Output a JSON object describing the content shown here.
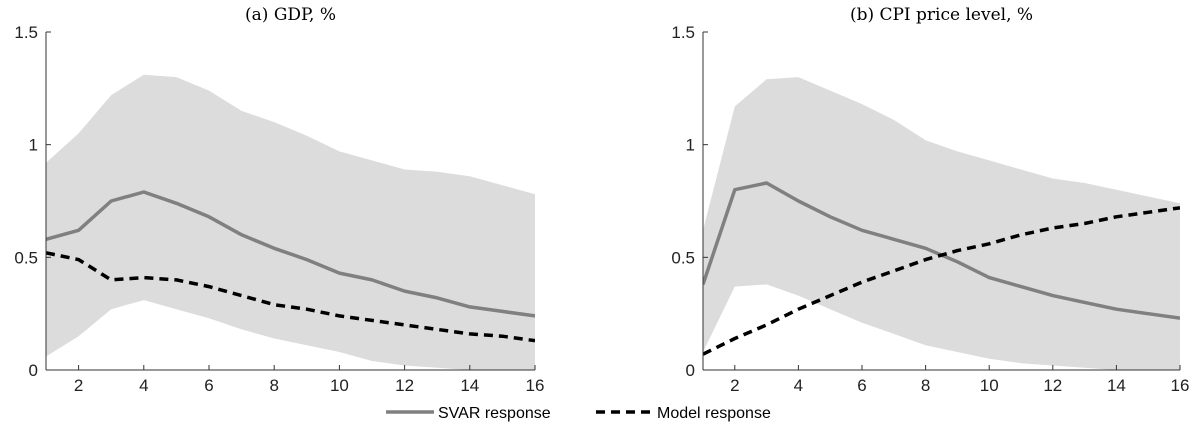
{
  "colors": {
    "band": "#dcdcdc",
    "svar": "#808080",
    "model": "#000000",
    "axis": "#333333"
  },
  "legend": {
    "placement": "bottom-center",
    "svar_label": "SVAR response",
    "model_label": "Model response"
  },
  "chart_data": [
    {
      "type": "line",
      "title": "(a) GDP, %",
      "xlabel": "",
      "ylabel": "",
      "xlim": [
        1,
        16
      ],
      "ylim": [
        0,
        1.5
      ],
      "x_ticks": [
        2,
        4,
        6,
        8,
        10,
        12,
        14,
        16
      ],
      "y_ticks": [
        0,
        0.5,
        1,
        1.5
      ],
      "x_tick_labels": [
        "2",
        "4",
        "6",
        "8",
        "10",
        "12",
        "14",
        "16"
      ],
      "y_tick_labels": [
        "0",
        "0.5",
        "1",
        "1.5"
      ],
      "grid": false,
      "x": [
        1,
        2,
        3,
        4,
        5,
        6,
        7,
        8,
        9,
        10,
        11,
        12,
        13,
        14,
        15,
        16
      ],
      "band": {
        "upper": [
          0.92,
          1.05,
          1.22,
          1.31,
          1.3,
          1.24,
          1.15,
          1.1,
          1.04,
          0.97,
          0.93,
          0.89,
          0.88,
          0.86,
          0.82,
          0.78
        ],
        "lower": [
          0.06,
          0.15,
          0.27,
          0.31,
          0.27,
          0.23,
          0.18,
          0.14,
          0.11,
          0.08,
          0.04,
          0.02,
          0.01,
          0.0,
          -0.01,
          -0.02
        ]
      },
      "series": [
        {
          "name": "SVAR response",
          "values": [
            0.58,
            0.62,
            0.75,
            0.79,
            0.74,
            0.68,
            0.6,
            0.54,
            0.49,
            0.43,
            0.4,
            0.35,
            0.32,
            0.28,
            0.26,
            0.24
          ]
        },
        {
          "name": "Model response",
          "values": [
            0.52,
            0.49,
            0.4,
            0.41,
            0.4,
            0.37,
            0.33,
            0.29,
            0.27,
            0.24,
            0.22,
            0.2,
            0.18,
            0.16,
            0.15,
            0.13
          ]
        }
      ]
    },
    {
      "type": "line",
      "title": "(b) CPI price level, %",
      "xlabel": "",
      "ylabel": "",
      "xlim": [
        1,
        16
      ],
      "ylim": [
        0,
        1.5
      ],
      "x_ticks": [
        2,
        4,
        6,
        8,
        10,
        12,
        14,
        16
      ],
      "y_ticks": [
        0,
        0.5,
        1,
        1.5
      ],
      "x_tick_labels": [
        "2",
        "4",
        "6",
        "8",
        "10",
        "12",
        "14",
        "16"
      ],
      "y_tick_labels": [
        "0",
        "0.5",
        "1",
        "1.5"
      ],
      "grid": false,
      "x": [
        1,
        2,
        3,
        4,
        5,
        6,
        7,
        8,
        9,
        10,
        11,
        12,
        13,
        14,
        15,
        16
      ],
      "band": {
        "upper": [
          0.62,
          1.17,
          1.29,
          1.3,
          1.24,
          1.18,
          1.11,
          1.02,
          0.97,
          0.93,
          0.89,
          0.85,
          0.83,
          0.8,
          0.77,
          0.74
        ],
        "lower": [
          0.08,
          0.37,
          0.38,
          0.33,
          0.27,
          0.21,
          0.16,
          0.11,
          0.08,
          0.05,
          0.03,
          0.02,
          0.01,
          0.0,
          -0.01,
          -0.02
        ]
      },
      "series": [
        {
          "name": "SVAR response",
          "values": [
            0.38,
            0.8,
            0.83,
            0.75,
            0.68,
            0.62,
            0.58,
            0.54,
            0.48,
            0.41,
            0.37,
            0.33,
            0.3,
            0.27,
            0.25,
            0.23
          ]
        },
        {
          "name": "Model response",
          "values": [
            0.07,
            0.14,
            0.2,
            0.27,
            0.33,
            0.39,
            0.44,
            0.49,
            0.53,
            0.56,
            0.6,
            0.63,
            0.65,
            0.68,
            0.7,
            0.72
          ]
        }
      ]
    }
  ]
}
